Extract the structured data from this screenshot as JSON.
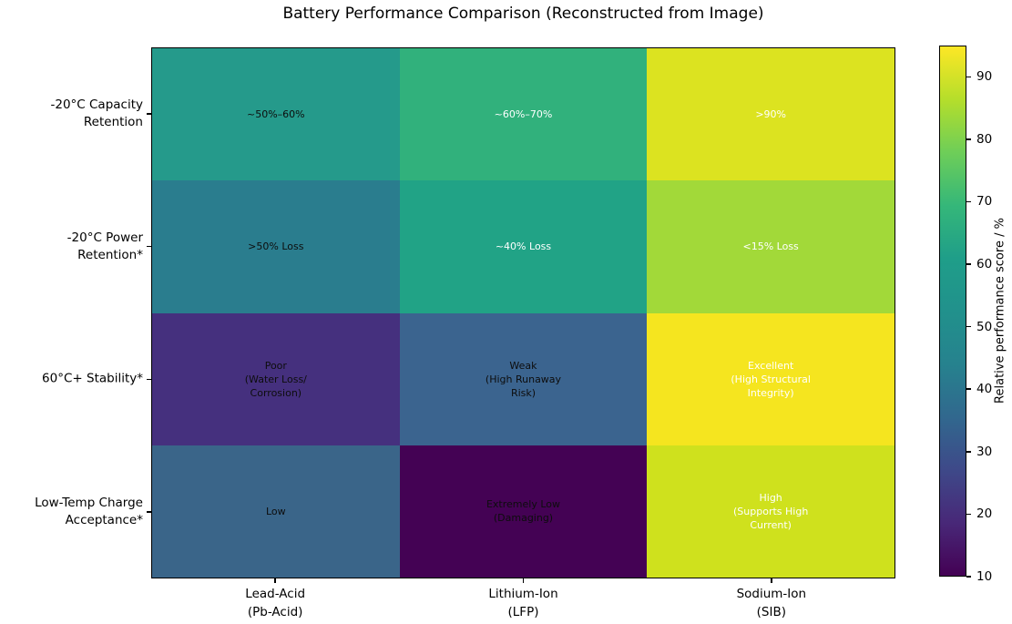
{
  "title": "Battery Performance Comparison (Reconstructed from Image)",
  "chart_data": {
    "type": "heatmap",
    "title": "Battery Performance Comparison (Reconstructed from Image)",
    "colormap": "viridis",
    "vmin": 10,
    "vmax": 95,
    "columns": [
      "Lead-Acid\n(Pb-Acid)",
      "Lithium-Ion\n(LFP)",
      "Sodium-Ion\n(SIB)"
    ],
    "rows": [
      "-20°C Capacity\nRetention",
      "-20°C Power\nRetention*",
      "60°C+ Stability*",
      "Low-Temp Charge\nAcceptance*"
    ],
    "values": [
      [
        55,
        65,
        92
      ],
      [
        45,
        60,
        85
      ],
      [
        20,
        35,
        95
      ],
      [
        35,
        10,
        90
      ]
    ],
    "annotations": [
      [
        "~50%–60%",
        "~60%–70%",
        ">90%"
      ],
      [
        ">50% Loss",
        "~40% Loss",
        "<15% Loss"
      ],
      [
        "Poor\n(Water Loss/\nCorrosion)",
        "Weak\n(High Runaway\nRisk)",
        "Excellent\n(High Structural\nIntegrity)"
      ],
      [
        "Low",
        "Extremely Low\n(Damaging)",
        "High\n(Supports High\nCurrent)"
      ]
    ],
    "cell_colors": [
      [
        "#259a8b",
        "#31b17c",
        "#dce320"
      ],
      [
        "#2a7d8e",
        "#21a386",
        "#a2d939"
      ],
      [
        "#45307e",
        "#3b648f",
        "#f5e51f"
      ],
      [
        "#3a6589",
        "#440254",
        "#cfe11d"
      ]
    ],
    "text_colors": [
      [
        "#0d0d0d",
        "#ffffff",
        "#ffffff"
      ],
      [
        "#0d0d0d",
        "#ffffff",
        "#ffffff"
      ],
      [
        "#0d0d0d",
        "#0d0d0d",
        "#ffffff"
      ],
      [
        "#0d0d0d",
        "#0d0d0d",
        "#ffffff"
      ]
    ],
    "colorbar": {
      "label": "Relative performance score / %",
      "ticks": [
        10,
        20,
        30,
        40,
        50,
        60,
        70,
        80,
        90
      ]
    }
  }
}
